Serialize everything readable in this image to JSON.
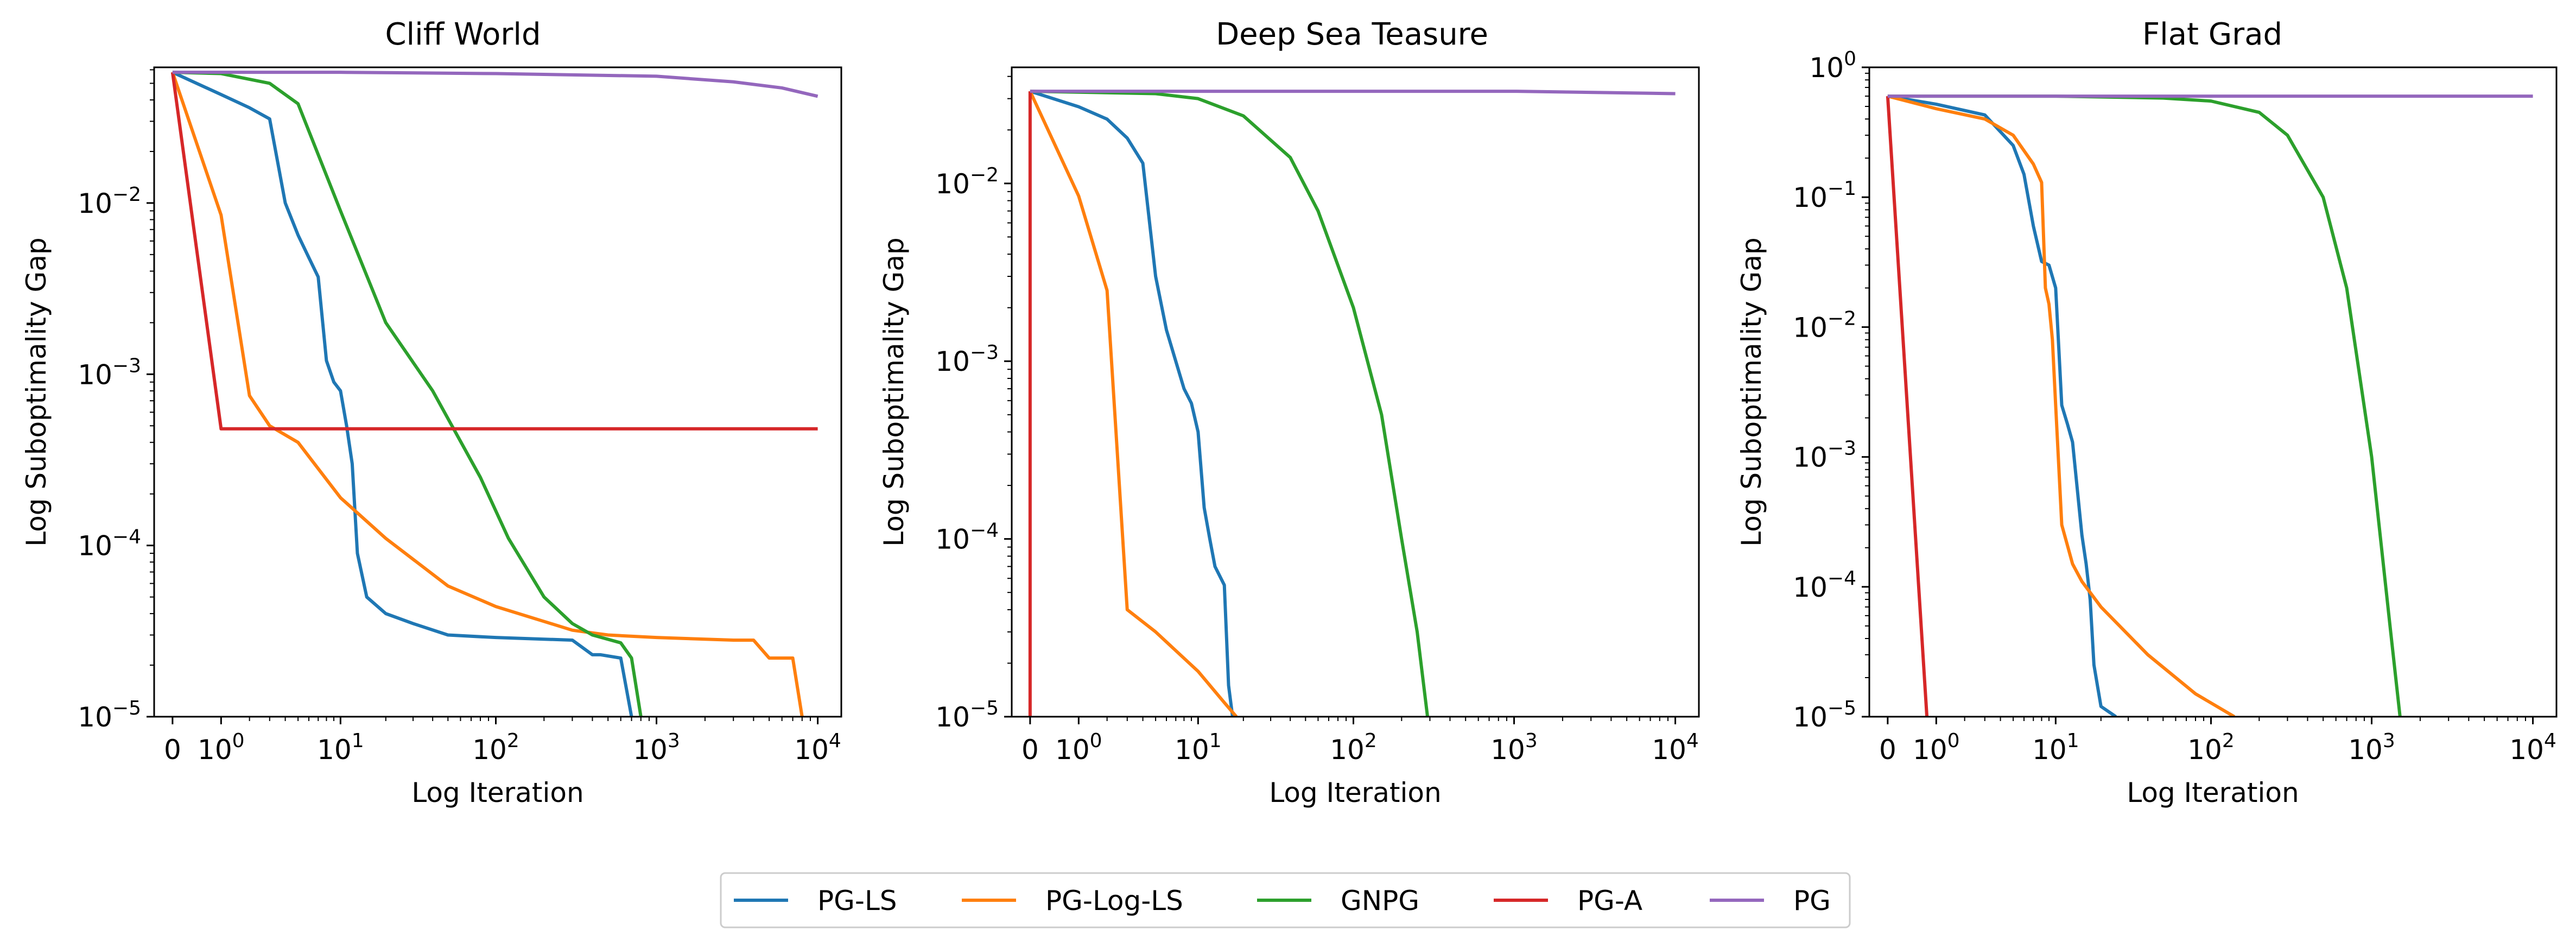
{
  "legend": {
    "placement": "bottom-center",
    "entries": [
      {
        "name": "PG-LS",
        "color": "#1f77b4"
      },
      {
        "name": "PG-Log-LS",
        "color": "#ff7f0e"
      },
      {
        "name": "GNPG",
        "color": "#2ca02c"
      },
      {
        "name": "PG-A",
        "color": "#d62728"
      },
      {
        "name": "PG",
        "color": "#9467bd"
      }
    ]
  },
  "chart_data": [
    {
      "type": "line",
      "title": "Cliff World",
      "xlabel": "Log Iteration",
      "ylabel": "Log Suboptimality Gap",
      "xscale": "symlog",
      "yscale": "log",
      "xlim": [
        -0.3,
        14000
      ],
      "ylim": [
        1e-05,
        0.062
      ],
      "xticks": [
        {
          "v": 0,
          "base": "0",
          "exp": ""
        },
        {
          "v": 1,
          "base": "10",
          "exp": "0"
        },
        {
          "v": 10,
          "base": "10",
          "exp": "1"
        },
        {
          "v": 100,
          "base": "10",
          "exp": "2"
        },
        {
          "v": 1000,
          "base": "10",
          "exp": "3"
        },
        {
          "v": 10000,
          "base": "10",
          "exp": "4"
        }
      ],
      "yticks": [
        {
          "v": 0.01,
          "base": "10",
          "exp": "−2"
        },
        {
          "v": 0.001,
          "base": "10",
          "exp": "−3"
        },
        {
          "v": 0.0001,
          "base": "10",
          "exp": "−4"
        },
        {
          "v": 1e-05,
          "base": "10",
          "exp": "−5"
        }
      ],
      "series": [
        {
          "name": "PG-LS",
          "x": [
            0,
            1,
            2,
            3,
            4,
            5,
            6,
            7,
            8,
            9,
            10,
            11,
            12,
            13,
            15,
            20,
            30,
            50,
            100,
            300,
            400,
            450,
            600,
            700
          ],
          "y": [
            0.058,
            0.043,
            0.036,
            0.031,
            0.01,
            0.0065,
            0.0048,
            0.0037,
            0.0012,
            0.0009,
            0.0008,
            0.0005,
            0.0003,
            9e-05,
            5e-05,
            4e-05,
            3.5e-05,
            3e-05,
            2.9e-05,
            2.8e-05,
            2.3e-05,
            2.3e-05,
            2.2e-05,
            1e-05
          ]
        },
        {
          "name": "PG-Log-LS",
          "x": [
            0,
            1,
            2,
            3,
            5,
            10,
            20,
            50,
            100,
            200,
            300,
            500,
            1000,
            3000,
            4000,
            5000,
            7000,
            8000
          ],
          "y": [
            0.058,
            0.0085,
            0.00075,
            0.0005,
            0.0004,
            0.00019,
            0.00011,
            5.8e-05,
            4.4e-05,
            3.6e-05,
            3.2e-05,
            3e-05,
            2.9e-05,
            2.8e-05,
            2.8e-05,
            2.2e-05,
            2.2e-05,
            1e-05
          ]
        },
        {
          "name": "GNPG",
          "x": [
            0,
            1,
            3,
            5,
            10,
            20,
            40,
            80,
            120,
            200,
            300,
            400,
            600,
            700,
            800
          ],
          "y": [
            0.058,
            0.057,
            0.05,
            0.038,
            0.009,
            0.002,
            0.0008,
            0.00025,
            0.00011,
            5e-05,
            3.5e-05,
            3e-05,
            2.7e-05,
            2.2e-05,
            1e-05
          ]
        },
        {
          "name": "PG-A",
          "x": [
            0,
            1,
            3,
            10,
            100,
            1000,
            10000
          ],
          "y": [
            0.058,
            0.00048,
            0.00048,
            0.00048,
            0.00048,
            0.00048,
            0.00048
          ]
        },
        {
          "name": "PG",
          "x": [
            0,
            10,
            100,
            1000,
            3000,
            6000,
            10000
          ],
          "y": [
            0.058,
            0.058,
            0.057,
            0.055,
            0.051,
            0.047,
            0.042
          ]
        }
      ]
    },
    {
      "type": "line",
      "title": "Deep Sea Teasure",
      "xlabel": "Log Iteration",
      "ylabel": "Log Suboptimality Gap",
      "xscale": "symlog",
      "yscale": "log",
      "xlim": [
        -0.3,
        14000
      ],
      "ylim": [
        1e-05,
        0.045
      ],
      "xticks": [
        {
          "v": 0,
          "base": "0",
          "exp": ""
        },
        {
          "v": 1,
          "base": "10",
          "exp": "0"
        },
        {
          "v": 10,
          "base": "10",
          "exp": "1"
        },
        {
          "v": 100,
          "base": "10",
          "exp": "2"
        },
        {
          "v": 1000,
          "base": "10",
          "exp": "3"
        },
        {
          "v": 10000,
          "base": "10",
          "exp": "4"
        }
      ],
      "yticks": [
        {
          "v": 0.01,
          "base": "10",
          "exp": "−2"
        },
        {
          "v": 0.001,
          "base": "10",
          "exp": "−3"
        },
        {
          "v": 0.0001,
          "base": "10",
          "exp": "−4"
        },
        {
          "v": 1e-05,
          "base": "10",
          "exp": "−5"
        }
      ],
      "series": [
        {
          "name": "PG-LS",
          "x": [
            0,
            1,
            2,
            3,
            4,
            5,
            6,
            7,
            8,
            9,
            10,
            11,
            12,
            13,
            15,
            16,
            17
          ],
          "y": [
            0.033,
            0.027,
            0.023,
            0.018,
            0.013,
            0.003,
            0.0015,
            0.001,
            0.0007,
            0.00058,
            0.0004,
            0.00015,
            0.0001,
            7e-05,
            5.5e-05,
            1.5e-05,
            1e-05
          ]
        },
        {
          "name": "PG-Log-LS",
          "x": [
            0,
            1,
            2,
            3,
            5,
            10,
            15,
            18
          ],
          "y": [
            0.033,
            0.0085,
            0.0025,
            4e-05,
            3e-05,
            1.8e-05,
            1.2e-05,
            1e-05
          ]
        },
        {
          "name": "GNPG",
          "x": [
            0,
            5,
            10,
            20,
            40,
            60,
            100,
            150,
            200,
            250,
            290
          ],
          "y": [
            0.033,
            0.032,
            0.03,
            0.024,
            0.014,
            0.007,
            0.002,
            0.0005,
            0.0001,
            3e-05,
            1e-05
          ]
        },
        {
          "name": "PG-A",
          "x": [
            0,
            0
          ],
          "y": [
            0.033,
            1e-05
          ]
        },
        {
          "name": "PG",
          "x": [
            0,
            10,
            100,
            1000,
            10000
          ],
          "y": [
            0.033,
            0.033,
            0.033,
            0.033,
            0.032
          ]
        }
      ]
    },
    {
      "type": "line",
      "title": "Flat Grad",
      "xlabel": "Log Iteration",
      "ylabel": "Log Suboptimality Gap",
      "xscale": "symlog",
      "yscale": "log",
      "xlim": [
        -0.3,
        14000
      ],
      "ylim": [
        1e-05,
        1
      ],
      "xticks": [
        {
          "v": 0,
          "base": "0",
          "exp": ""
        },
        {
          "v": 1,
          "base": "10",
          "exp": "0"
        },
        {
          "v": 10,
          "base": "10",
          "exp": "1"
        },
        {
          "v": 100,
          "base": "10",
          "exp": "2"
        },
        {
          "v": 1000,
          "base": "10",
          "exp": "3"
        },
        {
          "v": 10000,
          "base": "10",
          "exp": "4"
        }
      ],
      "yticks": [
        {
          "v": 1,
          "base": "10",
          "exp": "0"
        },
        {
          "v": 0.1,
          "base": "10",
          "exp": "−1"
        },
        {
          "v": 0.01,
          "base": "10",
          "exp": "−2"
        },
        {
          "v": 0.001,
          "base": "10",
          "exp": "−3"
        },
        {
          "v": 0.0001,
          "base": "10",
          "exp": "−4"
        },
        {
          "v": 1e-05,
          "base": "10",
          "exp": "−5"
        }
      ],
      "series": [
        {
          "name": "PG-LS",
          "x": [
            0,
            1,
            3,
            5,
            6,
            7,
            8,
            9,
            10,
            11,
            12,
            13,
            15,
            16,
            17,
            18,
            20,
            25
          ],
          "y": [
            0.6,
            0.52,
            0.43,
            0.25,
            0.15,
            0.06,
            0.032,
            0.03,
            0.02,
            0.0025,
            0.0018,
            0.0013,
            0.00025,
            0.00015,
            8e-05,
            2.5e-05,
            1.2e-05,
            1e-05
          ]
        },
        {
          "name": "PG-Log-LS",
          "x": [
            0,
            1,
            3,
            5,
            7,
            8,
            8.5,
            9,
            9.5,
            10,
            11,
            13,
            15,
            20,
            40,
            80,
            140
          ],
          "y": [
            0.6,
            0.48,
            0.4,
            0.3,
            0.18,
            0.13,
            0.02,
            0.015,
            0.008,
            0.0025,
            0.0003,
            0.00015,
            0.00011,
            7e-05,
            3e-05,
            1.5e-05,
            1e-05
          ]
        },
        {
          "name": "GNPG",
          "x": [
            0,
            10,
            50,
            100,
            200,
            300,
            500,
            700,
            1000,
            1300,
            1500
          ],
          "y": [
            0.6,
            0.6,
            0.58,
            0.55,
            0.45,
            0.3,
            0.1,
            0.02,
            0.001,
            5e-05,
            1e-05
          ]
        },
        {
          "name": "PG-A",
          "x": [
            0,
            0.75
          ],
          "y": [
            0.6,
            1e-05
          ]
        },
        {
          "name": "PG",
          "x": [
            0,
            10,
            100,
            1000,
            10000
          ],
          "y": [
            0.6,
            0.6,
            0.6,
            0.6,
            0.6
          ]
        }
      ]
    }
  ]
}
